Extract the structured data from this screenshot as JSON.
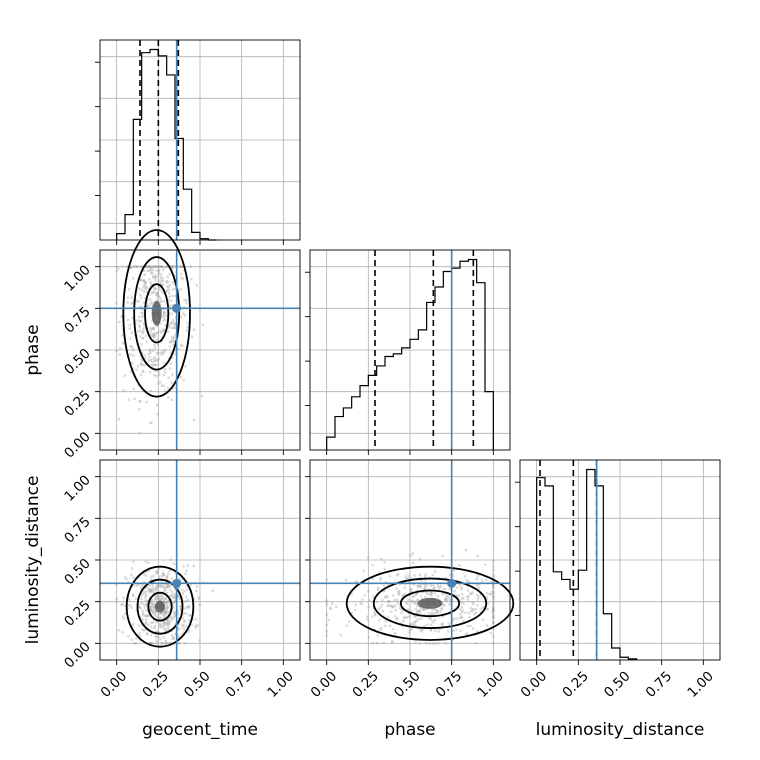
{
  "chart_data": {
    "type": "corner",
    "parameters": [
      "geocent_time",
      "phase",
      "luminosity_distance"
    ],
    "ticks": [
      "0.00",
      "0.25",
      "0.50",
      "0.75",
      "1.00"
    ],
    "axis_range": [
      -0.1,
      1.1
    ],
    "truths": {
      "geocent_time": 0.36,
      "phase": 0.75,
      "luminosity_distance": 0.36
    },
    "quantiles": {
      "geocent_time": [
        0.14,
        0.25,
        0.37
      ],
      "phase": [
        0.29,
        0.64,
        0.88
      ],
      "luminosity_distance": [
        0.02,
        0.22,
        0.36
      ]
    },
    "hist_1d": {
      "geocent_time": {
        "edges": [
          0.0,
          0.05,
          0.1,
          0.15,
          0.2,
          0.25,
          0.3,
          0.35,
          0.4,
          0.45,
          0.5,
          0.55,
          0.6
        ],
        "counts": [
          0.1,
          0.4,
          1.9,
          2.95,
          3.0,
          2.9,
          2.6,
          1.6,
          0.8,
          0.12,
          0.02,
          0.0
        ]
      },
      "phase": {
        "edges": [
          0.0,
          0.05,
          0.1,
          0.15,
          0.2,
          0.25,
          0.3,
          0.35,
          0.4,
          0.45,
          0.5,
          0.55,
          0.6,
          0.65,
          0.7,
          0.75,
          0.8,
          0.85,
          0.9,
          0.95,
          1.0
        ],
        "counts": [
          0.15,
          0.39,
          0.49,
          0.62,
          0.75,
          0.87,
          0.98,
          1.09,
          1.12,
          1.19,
          1.29,
          1.4,
          1.72,
          1.9,
          2.08,
          2.12,
          2.2,
          2.22,
          1.95,
          0.68
        ]
      },
      "luminosity_distance": {
        "edges": [
          0.0,
          0.05,
          0.1,
          0.15,
          0.2,
          0.25,
          0.3,
          0.35,
          0.4,
          0.45,
          0.5,
          0.55,
          0.6
        ],
        "counts": [
          3.35,
          3.2,
          1.62,
          1.48,
          1.3,
          1.65,
          3.5,
          3.2,
          0.85,
          0.22,
          0.05,
          0.02
        ]
      }
    },
    "scatter_2d": [
      {
        "x": "geocent_time",
        "y": "phase",
        "mean": [
          0.24,
          0.72
        ],
        "sd": [
          0.1,
          0.25
        ]
      },
      {
        "x": "geocent_time",
        "y": "luminosity_distance",
        "mean": [
          0.26,
          0.22
        ],
        "sd": [
          0.1,
          0.12
        ]
      },
      {
        "x": "phase",
        "y": "luminosity_distance",
        "mean": [
          0.62,
          0.24
        ],
        "sd": [
          0.25,
          0.11
        ]
      }
    ],
    "grid": true
  }
}
